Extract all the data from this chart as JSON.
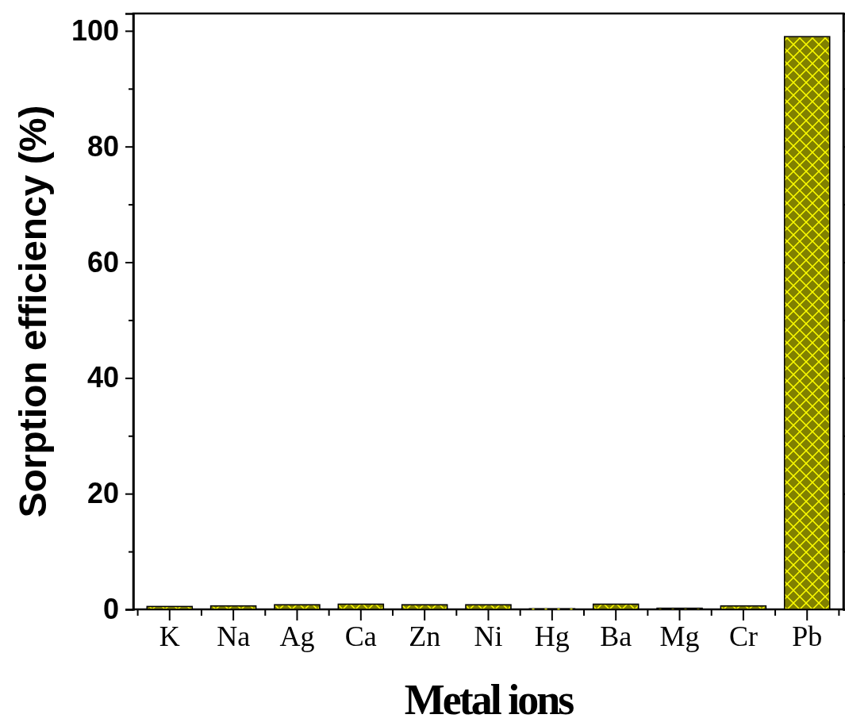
{
  "chart_data": {
    "type": "bar",
    "xlabel": "Metal ions",
    "ylabel": "Sorption efficiency (%)",
    "categories": [
      "K",
      "Na",
      "Ag",
      "Ca",
      "Zn",
      "Ni",
      "Hg",
      "Ba",
      "Mg",
      "Cr",
      "Pb"
    ],
    "values": [
      0.5,
      0.6,
      0.8,
      0.9,
      0.8,
      0.8,
      0.1,
      0.9,
      0.2,
      0.6,
      99.0
    ],
    "color": "#808000",
    "ylim": [
      0,
      103
    ],
    "yticks": [
      0,
      {
        "value": 10,
        "label": null
      },
      20,
      {
        "value": 30,
        "label": null
      },
      40,
      {
        "value": 50,
        "label": null
      },
      60,
      {
        "value": 70,
        "label": null
      },
      80,
      {
        "value": 90,
        "label": null
      },
      100
    ],
    "grid": false
  }
}
